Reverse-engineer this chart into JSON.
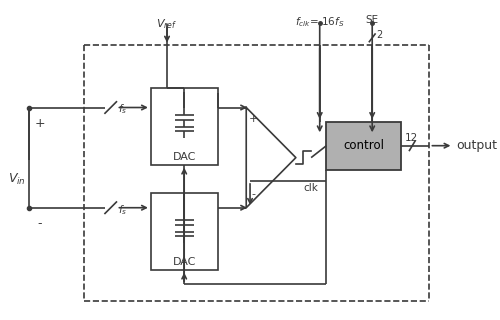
{
  "bg_color": "#ffffff",
  "line_color": "#3a3a3a",
  "ctrl_fill": "#b0b0b0",
  "dac_fill": "#ffffff",
  "vref_label": "$V_{ref}$",
  "fclk_label": "$f_{clk}$= 16$f_S$",
  "se_label": "SE",
  "vin_label": "$V_{in}$",
  "plus_label": "+",
  "minus_label": "-",
  "fs_label": "$f_s$",
  "dac_label": "DAC",
  "control_label": "control",
  "output_label": "output",
  "clk_label": "clk",
  "bit12_label": "12",
  "bit2_label": "2",
  "lw": 1.2
}
